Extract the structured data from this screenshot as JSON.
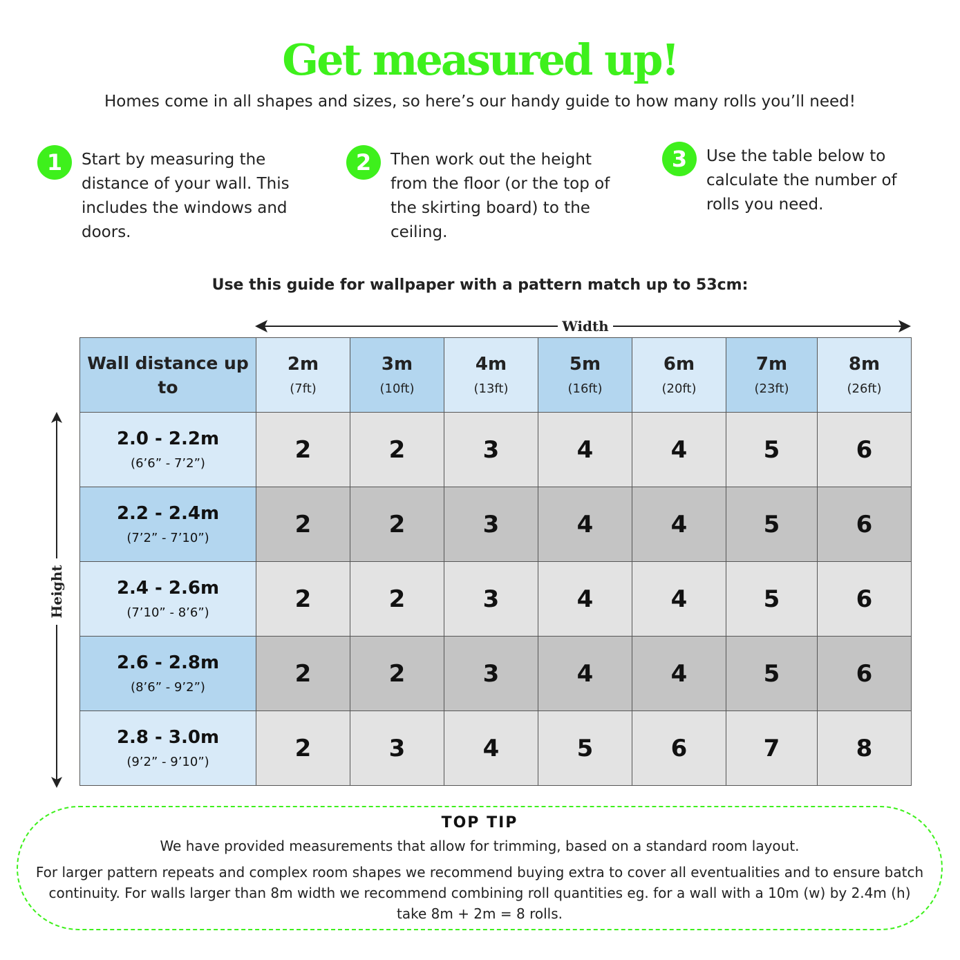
{
  "title": "Get measured up!",
  "subtitle": "Homes come in all shapes and sizes, so here’s our handy guide to how many rolls you’ll need!",
  "steps": [
    {
      "number": "1",
      "text": "Start by measuring the distance of your wall. This includes the windows and doors."
    },
    {
      "number": "2",
      "text": "Then work out the height from the floor (or the top of the skirting board) to the ceiling."
    },
    {
      "number": "3",
      "text": "Use the table below to calculate the number of rolls you need."
    }
  ],
  "guide_heading": "Use this guide for wallpaper with a pattern match up to 53cm:",
  "width_label": "Width",
  "height_label": "Height",
  "colors": {
    "accent_green": "#3ef01c",
    "header_blue_dark": "#b3d6ef",
    "header_blue_light": "#d8eaf8",
    "cell_light": "#e3e3e3",
    "cell_dark": "#c4c4c4"
  },
  "table": {
    "corner": "Wall distance up to",
    "columns": [
      {
        "m": "2m",
        "ft": "(7ft)"
      },
      {
        "m": "3m",
        "ft": "(10ft)"
      },
      {
        "m": "4m",
        "ft": "(13ft)"
      },
      {
        "m": "5m",
        "ft": "(16ft)"
      },
      {
        "m": "6m",
        "ft": "(20ft)"
      },
      {
        "m": "7m",
        "ft": "(23ft)"
      },
      {
        "m": "8m",
        "ft": "(26ft)"
      }
    ],
    "rows": [
      {
        "m": "2.0 - 2.2m",
        "ft": "(6’6” - 7’2”)",
        "values": [
          "2",
          "2",
          "3",
          "4",
          "4",
          "5",
          "6"
        ]
      },
      {
        "m": "2.2 - 2.4m",
        "ft": "(7’2” - 7’10”)",
        "values": [
          "2",
          "2",
          "3",
          "4",
          "4",
          "5",
          "6"
        ]
      },
      {
        "m": "2.4 - 2.6m",
        "ft": "(7’10” - 8’6”)",
        "values": [
          "2",
          "2",
          "3",
          "4",
          "4",
          "5",
          "6"
        ]
      },
      {
        "m": "2.6 - 2.8m",
        "ft": "(8’6” - 9’2”)",
        "values": [
          "2",
          "2",
          "3",
          "4",
          "4",
          "5",
          "6"
        ]
      },
      {
        "m": "2.8 - 3.0m",
        "ft": "(9’2” - 9’10”)",
        "values": [
          "2",
          "3",
          "4",
          "5",
          "6",
          "7",
          "8"
        ]
      }
    ]
  },
  "top_tip": {
    "heading": "TOP TIP",
    "line1": "We have provided measurements that allow for trimming, based on a standard room layout.",
    "line2": "For larger pattern repeats and complex room shapes we recommend buying extra to cover all eventualities and to ensure batch continuity. For walls larger than 8m width we recommend combining roll quantities eg. for a wall with a 10m (w) by 2.4m (h) take 8m + 2m = 8 rolls."
  }
}
